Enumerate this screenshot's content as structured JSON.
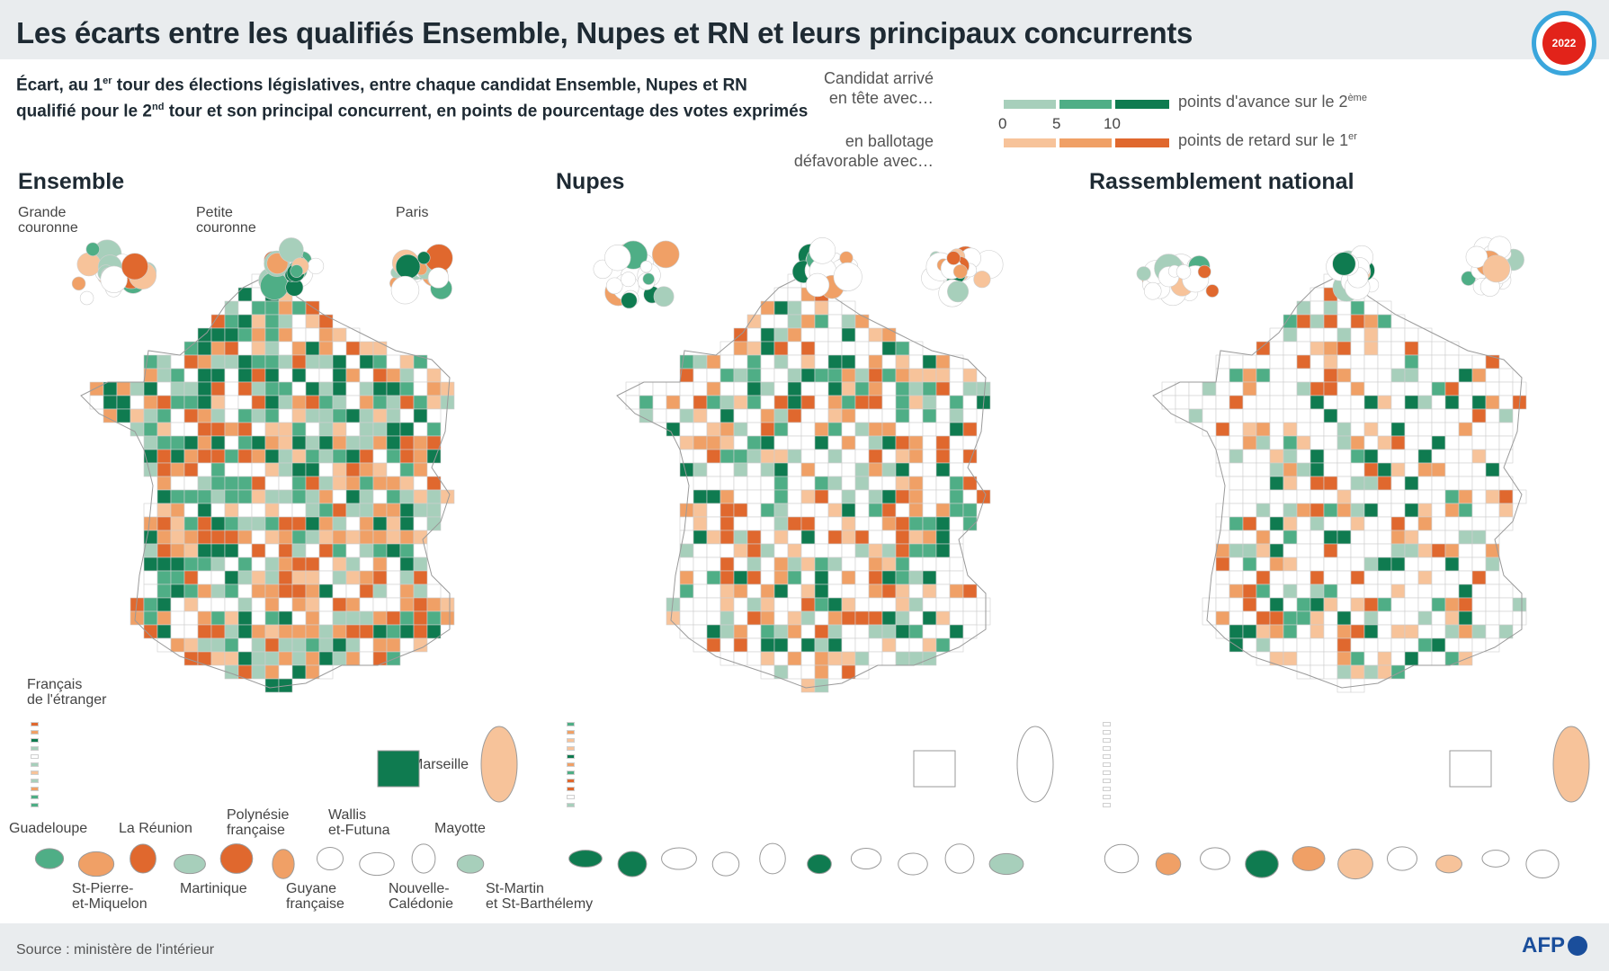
{
  "header": {
    "title": "Les écarts entre les qualifiés Ensemble, Nupes et RN et leurs principaux concurrents",
    "badge_year": "2022"
  },
  "subtitle": {
    "line1_start": "Écart, au 1",
    "line1_sup": "er",
    "line1_end": " tour des élections législatives, entre chaque candidat Ensemble, Nupes et RN",
    "line2_start": "qualifié pour le 2",
    "line2_sup": "nd",
    "line2_end": " tour et son principal concurrent, en points de pourcentage des votes exprimés"
  },
  "legend": {
    "lead_line_1": "Candidat arrivé",
    "lead_line_2": "en tête avec…",
    "desc_lead": "points d'avance sur le 2",
    "desc_lead_sup": "ème",
    "ticks": [
      "0",
      "5",
      "10"
    ],
    "behind_line_1": "en ballotage",
    "behind_line_2": "défavorable avec…",
    "desc_behind": "points de retard sur le 1",
    "desc_behind_sup": "er",
    "lead_colors": [
      "#a7cfbb",
      "#4fae86",
      "#0f7b50"
    ],
    "behind_colors": [
      "#f7c39a",
      "#f0a066",
      "#e0682e"
    ]
  },
  "panels": {
    "ensemble": "Ensemble",
    "nupes": "Nupes",
    "rn": "Rassemblement national"
  },
  "inset_labels": {
    "grande_couronne_1": "Grande",
    "grande_couronne_2": "couronne",
    "petite_couronne_1": "Petite",
    "petite_couronne_2": "couronne",
    "paris": "Paris",
    "francais_etranger_1": "Français",
    "francais_etranger_2": "de l'étranger",
    "marseille": "Marseille"
  },
  "overseas": {
    "guadeloupe": "Guadeloupe",
    "reunion": "La Réunion",
    "polynesie_1": "Polynésie",
    "polynesie_2": "française",
    "wallis_1": "Wallis",
    "wallis_2": "et-Futuna",
    "mayotte": "Mayotte",
    "spm_1": "St-Pierre-",
    "spm_2": "et-Miquelon",
    "martinique": "Martinique",
    "guyane_1": "Guyane",
    "guyane_2": "française",
    "nc_1": "Nouvelle-",
    "nc_2": "Calédonie",
    "stm_1": "St-Martin",
    "stm_2": "et St-Barthélemy"
  },
  "footer": {
    "source": "Source : ministère de l'intérieur",
    "agency": "AFP"
  }
}
